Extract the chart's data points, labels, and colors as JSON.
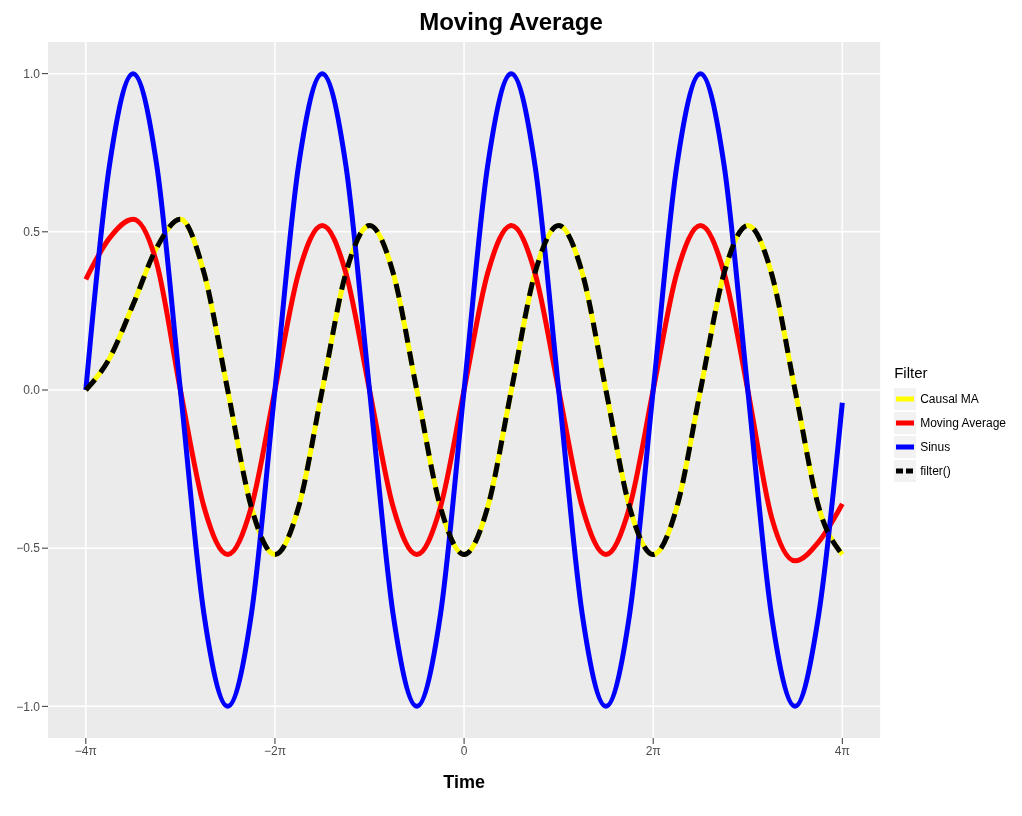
{
  "chart_data": {
    "type": "line",
    "title": "Moving Average",
    "xlabel": "Time",
    "legend_title": "Filter",
    "legend": "right",
    "grid": true,
    "x": [
      -12.566,
      -11.781,
      -10.996,
      -10.21,
      -9.425,
      -8.639,
      -7.854,
      -7.069,
      -6.283,
      -5.498,
      -4.712,
      -3.927,
      -3.142,
      -2.356,
      -1.571,
      -0.785,
      0,
      0.785,
      1.571,
      2.356,
      3.142,
      3.927,
      4.712,
      5.498,
      6.283,
      7.069,
      7.854,
      8.639,
      9.425,
      10.21,
      10.996,
      11.781,
      12.566
    ],
    "xlim": [
      -13.823,
      13.823
    ],
    "xticks": [
      {
        "value": -12.566,
        "label": "−4π"
      },
      {
        "value": -6.283,
        "label": "−2π"
      },
      {
        "value": 0,
        "label": "0"
      },
      {
        "value": 6.283,
        "label": "2π"
      },
      {
        "value": 12.566,
        "label": "4π"
      }
    ],
    "ylim": [
      -1.1,
      1.1
    ],
    "yticks": [
      {
        "value": -1,
        "label": "−1.0"
      },
      {
        "value": -0.5,
        "label": "−0.5"
      },
      {
        "value": 0,
        "label": "0.0"
      },
      {
        "value": 0.5,
        "label": "0.5"
      },
      {
        "value": 1,
        "label": "1.0"
      }
    ],
    "series": [
      {
        "name": "Causal MA",
        "color": "#ffff00",
        "line_style": "solid",
        "values": [
          0,
          0.1,
          0.27,
          0.45,
          0.54,
          0.37,
          0,
          -0.37,
          -0.52,
          -0.37,
          0,
          0.37,
          0.52,
          0.37,
          0,
          -0.37,
          -0.52,
          -0.37,
          0,
          0.37,
          0.52,
          0.37,
          0,
          -0.37,
          -0.52,
          -0.37,
          0,
          0.37,
          0.52,
          0.37,
          0,
          -0.37,
          -0.52
        ]
      },
      {
        "name": "Moving Average",
        "color": "#ff0000",
        "line_style": "solid",
        "values": [
          0.35,
          0.48,
          0.54,
          0.4,
          0,
          -0.37,
          -0.52,
          -0.37,
          0,
          0.37,
          0.52,
          0.37,
          0,
          -0.37,
          -0.52,
          -0.37,
          0,
          0.37,
          0.52,
          0.37,
          0,
          -0.37,
          -0.52,
          -0.37,
          0,
          0.37,
          0.52,
          0.37,
          0,
          -0.4,
          -0.54,
          -0.48,
          -0.36
        ]
      },
      {
        "name": "Sinus",
        "color": "#0000ff",
        "line_style": "solid",
        "values": [
          0,
          0.71,
          1,
          0.71,
          0,
          -0.71,
          -1,
          -0.71,
          0,
          0.71,
          1,
          0.71,
          0,
          -0.71,
          -1,
          -0.71,
          0,
          0.71,
          1,
          0.71,
          0,
          -0.71,
          -1,
          -0.71,
          0,
          0.71,
          1,
          0.71,
          0,
          -0.71,
          -1,
          -0.71,
          -0.04
        ]
      },
      {
        "name": "filter()",
        "color": "#000000",
        "line_style": "dashed",
        "values": [
          0,
          0.1,
          0.27,
          0.45,
          0.54,
          0.37,
          0,
          -0.37,
          -0.52,
          -0.37,
          0,
          0.37,
          0.52,
          0.37,
          0,
          -0.37,
          -0.52,
          -0.37,
          0,
          0.37,
          0.52,
          0.37,
          0,
          -0.37,
          -0.52,
          -0.37,
          0,
          0.37,
          0.52,
          0.37,
          0,
          -0.37,
          -0.52
        ]
      }
    ]
  }
}
